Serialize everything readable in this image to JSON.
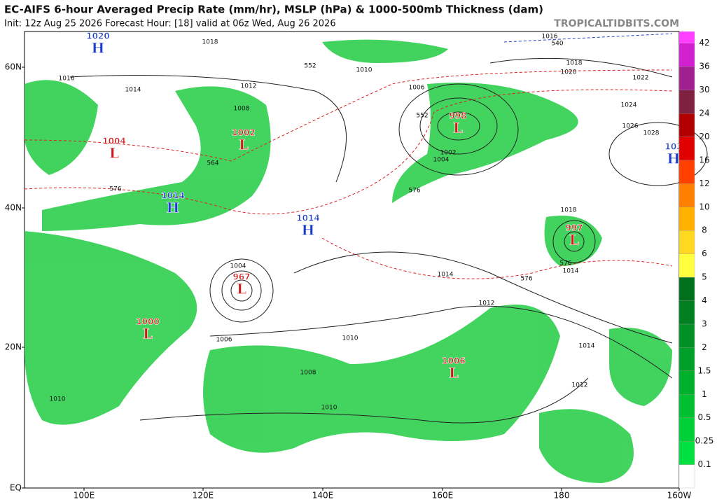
{
  "header": {
    "title": "EC-AIFS 6-hour Averaged Precip Rate (mm/hr), MSLP (hPa) & 1000-500mb Thickness (dam)",
    "subtitle": "Init: 12z Aug 25 2026   Forecast Hour: [18]   valid at 06z Wed, Aug 26 2026",
    "brand": "TROPICALTIDBITS.COM"
  },
  "axes": {
    "lat": [
      "60N",
      "40N",
      "20N",
      "EQ"
    ],
    "lon": [
      "100E",
      "120E",
      "140E",
      "160E",
      "180",
      "160W"
    ]
  },
  "colorbar": {
    "levels": [
      {
        "label": "0.1",
        "color": "#ffffff"
      },
      {
        "label": "0.25",
        "color": "#00e040"
      },
      {
        "label": "0.5",
        "color": "#00d038"
      },
      {
        "label": "1",
        "color": "#00c030"
      },
      {
        "label": "1.5",
        "color": "#00b02c"
      },
      {
        "label": "2",
        "color": "#00a028"
      },
      {
        "label": "3",
        "color": "#009024"
      },
      {
        "label": "4",
        "color": "#008020"
      },
      {
        "label": "5",
        "color": "#00701c"
      },
      {
        "label": "6",
        "color": "#ffff40"
      },
      {
        "label": "8",
        "color": "#ffd820"
      },
      {
        "label": "10",
        "color": "#ffb000"
      },
      {
        "label": "12",
        "color": "#ff8000"
      },
      {
        "label": "16",
        "color": "#ff4000"
      },
      {
        "label": "20",
        "color": "#e00000"
      },
      {
        "label": "24",
        "color": "#b00000"
      },
      {
        "label": "30",
        "color": "#802040"
      },
      {
        "label": "36",
        "color": "#a02090"
      },
      {
        "label": "42",
        "color": "#d020d0"
      }
    ],
    "top_color": "#ff40ff"
  },
  "centers": [
    {
      "letter": "H",
      "value": "1020",
      "color": "#1a3ccc"
    },
    {
      "letter": "L",
      "value": "1004",
      "color": "#d01818"
    },
    {
      "letter": "L",
      "value": "1002",
      "color": "#d01818"
    },
    {
      "letter": "H",
      "value": "1014",
      "color": "#1a3ccc"
    },
    {
      "letter": "H",
      "value": "1014",
      "color": "#1a3ccc"
    },
    {
      "letter": "L",
      "value": "967",
      "color": "#d01818"
    },
    {
      "letter": "L",
      "value": "1000",
      "color": "#d01818"
    },
    {
      "letter": "L",
      "value": "998",
      "color": "#d01818"
    },
    {
      "letter": "H",
      "value": "103",
      "color": "#1a3ccc"
    },
    {
      "letter": "L",
      "value": "997",
      "color": "#d01818"
    },
    {
      "letter": "L",
      "value": "1006",
      "color": "#d01818"
    }
  ],
  "isobar_labels": [
    "1018",
    "1016",
    "1014",
    "1012",
    "1010",
    "1008",
    "1006",
    "1004",
    "1016",
    "1018",
    "1020",
    "1022",
    "1024",
    "1026",
    "1028",
    "1014",
    "1012",
    "1010",
    "1008",
    "1010",
    "1014",
    "1012",
    "1006",
    "1010",
    "1002",
    "1004",
    "1018",
    "1014"
  ],
  "thickness_labels": [
    "552",
    "564",
    "576",
    "552",
    "576",
    "540",
    "576",
    "576"
  ]
}
